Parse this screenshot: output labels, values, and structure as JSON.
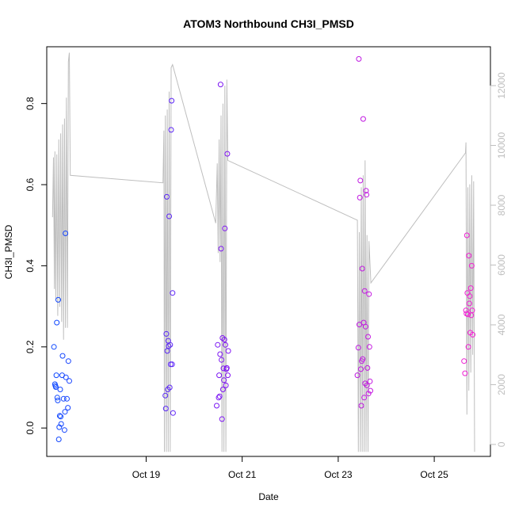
{
  "chart_data": {
    "type": "scatter",
    "title": "ATOM3 Northbound CH3I_PMSD",
    "xlabel": "Date",
    "ylabel": "CH3I_PMSD",
    "x_ticks": [
      {
        "value": 19,
        "label": "Oct 19"
      },
      {
        "value": 21,
        "label": "Oct 21"
      },
      {
        "value": 23,
        "label": "Oct 23"
      },
      {
        "value": 25,
        "label": "Oct 25"
      }
    ],
    "x_unit": "day of October (decimal)",
    "xlim": [
      16.93,
      26.17
    ],
    "y_ticks": [
      0.0,
      0.2,
      0.4,
      0.6,
      0.8
    ],
    "y_tick_labels": [
      "0.0",
      "0.2",
      "0.4",
      "0.6",
      "0.8"
    ],
    "ylim": [
      -0.07,
      0.94
    ],
    "y2_ticks": [
      0,
      2000,
      4000,
      6000,
      8000,
      10000,
      12000
    ],
    "y2lim": [
      -400,
      13300
    ],
    "grid": false,
    "colors": {
      "altitude_line": "#bebebe",
      "points_start": "#0d4bff",
      "points_mid": "#8a10f2",
      "points_end": "#f21fd2",
      "frame": "#000000"
    },
    "series": [
      {
        "type": "scatter",
        "points": [
          [
            17.08,
            0.2
          ],
          [
            17.1,
            0.108
          ],
          [
            17.11,
            0.104
          ],
          [
            17.12,
            0.101
          ],
          [
            17.13,
            0.13
          ],
          [
            17.14,
            0.26
          ],
          [
            17.15,
            0.075
          ],
          [
            17.16,
            0.068
          ],
          [
            17.17,
            0.316
          ],
          [
            17.18,
            -0.028
          ],
          [
            17.19,
            0.002
          ],
          [
            17.2,
            0.03
          ],
          [
            17.21,
            0.095
          ],
          [
            17.22,
            0.028
          ],
          [
            17.23,
            0.01
          ],
          [
            17.25,
            0.13
          ],
          [
            17.26,
            0.178
          ],
          [
            17.28,
            0.072
          ],
          [
            17.3,
            -0.005
          ],
          [
            17.31,
            0.04
          ],
          [
            17.32,
            0.48
          ],
          [
            17.33,
            0.125
          ],
          [
            17.35,
            0.072
          ],
          [
            17.37,
            0.05
          ],
          [
            17.38,
            0.165
          ],
          [
            17.4,
            0.116
          ],
          [
            19.4,
            0.08
          ],
          [
            19.41,
            0.048
          ],
          [
            19.42,
            0.232
          ],
          [
            19.43,
            0.57
          ],
          [
            19.44,
            0.19
          ],
          [
            19.45,
            0.095
          ],
          [
            19.46,
            0.215
          ],
          [
            19.47,
            0.202
          ],
          [
            19.48,
            0.522
          ],
          [
            19.49,
            0.1
          ],
          [
            19.5,
            0.205
          ],
          [
            19.51,
            0.157
          ],
          [
            19.52,
            0.735
          ],
          [
            19.53,
            0.807
          ],
          [
            19.54,
            0.157
          ],
          [
            19.55,
            0.333
          ],
          [
            19.56,
            0.037
          ],
          [
            20.47,
            0.055
          ],
          [
            20.49,
            0.205
          ],
          [
            20.51,
            0.075
          ],
          [
            20.52,
            0.13
          ],
          [
            20.53,
            0.078
          ],
          [
            20.54,
            0.182
          ],
          [
            20.55,
            0.847
          ],
          [
            20.56,
            0.442
          ],
          [
            20.57,
            0.168
          ],
          [
            20.58,
            0.022
          ],
          [
            20.59,
            0.222
          ],
          [
            20.6,
            0.095
          ],
          [
            20.61,
            0.147
          ],
          [
            20.62,
            0.118
          ],
          [
            20.63,
            0.218
          ],
          [
            20.64,
            0.492
          ],
          [
            20.65,
            0.205
          ],
          [
            20.66,
            0.105
          ],
          [
            20.67,
            0.145
          ],
          [
            20.68,
            0.148
          ],
          [
            20.69,
            0.676
          ],
          [
            20.7,
            0.13
          ],
          [
            20.71,
            0.19
          ],
          [
            23.4,
            0.13
          ],
          [
            23.42,
            0.198
          ],
          [
            23.43,
            0.91
          ],
          [
            23.44,
            0.255
          ],
          [
            23.45,
            0.568
          ],
          [
            23.46,
            0.61
          ],
          [
            23.47,
            0.145
          ],
          [
            23.48,
            0.055
          ],
          [
            23.49,
            0.165
          ],
          [
            23.5,
            0.393
          ],
          [
            23.51,
            0.17
          ],
          [
            23.52,
            0.762
          ],
          [
            23.53,
            0.26
          ],
          [
            23.54,
            0.075
          ],
          [
            23.55,
            0.338
          ],
          [
            23.56,
            0.11
          ],
          [
            23.57,
            0.25
          ],
          [
            23.58,
            0.585
          ],
          [
            23.59,
            0.575
          ],
          [
            23.6,
            0.105
          ],
          [
            23.61,
            0.148
          ],
          [
            23.62,
            0.225
          ],
          [
            23.63,
            0.085
          ],
          [
            23.64,
            0.33
          ],
          [
            23.65,
            0.2
          ],
          [
            23.66,
            0.115
          ],
          [
            23.67,
            0.092
          ],
          [
            25.62,
            0.165
          ],
          [
            25.64,
            0.135
          ],
          [
            25.66,
            0.29
          ],
          [
            25.67,
            0.282
          ],
          [
            25.68,
            0.475
          ],
          [
            25.69,
            0.333
          ],
          [
            25.7,
            0.28
          ],
          [
            25.71,
            0.2
          ],
          [
            25.72,
            0.425
          ],
          [
            25.73,
            0.307
          ],
          [
            25.74,
            0.325
          ],
          [
            25.75,
            0.235
          ],
          [
            25.76,
            0.345
          ],
          [
            25.77,
            0.278
          ],
          [
            25.78,
            0.4
          ],
          [
            25.79,
            0.29
          ],
          [
            25.8,
            0.23
          ]
        ]
      },
      {
        "type": "line",
        "axis": "secondary",
        "points": [
          [
            17.05,
            7600
          ],
          [
            17.07,
            9600
          ],
          [
            17.09,
            5200
          ],
          [
            17.1,
            9800
          ],
          [
            17.12,
            4800
          ],
          [
            17.14,
            9700
          ],
          [
            17.16,
            4300
          ],
          [
            17.18,
            10200
          ],
          [
            17.2,
            4600
          ],
          [
            17.22,
            10400
          ],
          [
            17.24,
            4100
          ],
          [
            17.26,
            10700
          ],
          [
            17.28,
            3500
          ],
          [
            17.3,
            10900
          ],
          [
            17.32,
            3900
          ],
          [
            17.34,
            11600
          ],
          [
            17.36,
            3900
          ],
          [
            17.38,
            12800
          ],
          [
            17.4,
            13100
          ],
          [
            17.42,
            9000
          ],
          [
            19.35,
            8750
          ],
          [
            19.37,
            10500
          ],
          [
            19.38,
            -250
          ],
          [
            19.4,
            11000
          ],
          [
            19.42,
            -250
          ],
          [
            19.44,
            11200
          ],
          [
            19.46,
            -250
          ],
          [
            19.48,
            11800
          ],
          [
            19.5,
            -250
          ],
          [
            19.52,
            12600
          ],
          [
            19.55,
            12700
          ],
          [
            20.45,
            7400
          ],
          [
            20.48,
            9400
          ],
          [
            20.5,
            6400
          ],
          [
            20.52,
            10200
          ],
          [
            20.54,
            6100
          ],
          [
            20.56,
            11000
          ],
          [
            20.58,
            -250
          ],
          [
            20.6,
            11400
          ],
          [
            20.62,
            -250
          ],
          [
            20.64,
            12000
          ],
          [
            20.66,
            -250
          ],
          [
            20.68,
            12200
          ],
          [
            20.7,
            9500
          ],
          [
            23.4,
            7500
          ],
          [
            23.42,
            -250
          ],
          [
            23.44,
            7100
          ],
          [
            23.46,
            -250
          ],
          [
            23.48,
            8600
          ],
          [
            23.5,
            -250
          ],
          [
            23.52,
            9000
          ],
          [
            23.54,
            -250
          ],
          [
            23.56,
            9500
          ],
          [
            23.58,
            -250
          ],
          [
            23.6,
            7000
          ],
          [
            23.62,
            -250
          ],
          [
            23.64,
            6800
          ],
          [
            23.68,
            5400
          ],
          [
            25.65,
            9750
          ],
          [
            25.66,
            10100
          ],
          [
            25.68,
            1000
          ],
          [
            25.7,
            8600
          ],
          [
            25.72,
            1800
          ],
          [
            25.74,
            8700
          ],
          [
            25.76,
            2400
          ],
          [
            25.78,
            9000
          ],
          [
            25.8,
            3000
          ],
          [
            25.82,
            8800
          ],
          [
            25.84,
            -250
          ]
        ]
      }
    ]
  }
}
